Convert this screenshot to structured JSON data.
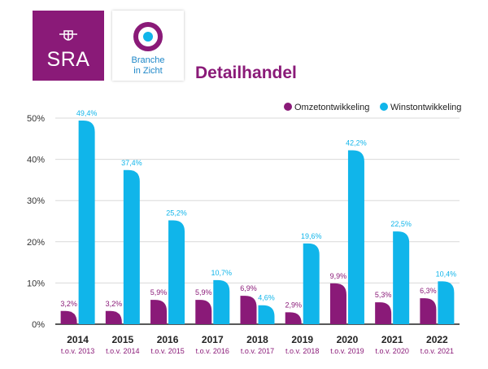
{
  "logos": {
    "sra": "SRA",
    "branche_line1": "Branche",
    "branche_line2": "in Zicht"
  },
  "colors": {
    "omzet": "#8a1a78",
    "winst": "#10b5ea",
    "axis": "#222222",
    "grid": "#d9d9d9"
  },
  "chart_data": {
    "type": "bar",
    "title": "Detailhandel",
    "categories": [
      "2014",
      "2015",
      "2016",
      "2017",
      "2018",
      "2019",
      "2020",
      "2021",
      "2022"
    ],
    "subcategories": [
      "t.o.v. 2013",
      "t.o.v. 2014",
      "t.o.v. 2015",
      "t.o.v. 2016",
      "t.o.v. 2017",
      "t.o.v. 2018",
      "t.o.v. 2019",
      "t.o.v. 2020",
      "t.o.v. 2021"
    ],
    "series": [
      {
        "name": "Omzetontwikkeling",
        "values": [
          3.2,
          3.2,
          5.9,
          5.9,
          6.9,
          2.9,
          9.9,
          5.3,
          6.3
        ],
        "labels": [
          "3,2%",
          "3,2%",
          "5,9%",
          "5,9%",
          "6,9%",
          "2,9%",
          "9,9%",
          "5,3%",
          "6,3%"
        ]
      },
      {
        "name": "Winstontwikkeling",
        "values": [
          49.4,
          37.4,
          25.2,
          10.7,
          4.6,
          19.6,
          42.2,
          22.5,
          10.4
        ],
        "labels": [
          "49,4%",
          "37,4%",
          "25,2%",
          "10,7%",
          "4,6%",
          "19,6%",
          "42,2%",
          "22,5%",
          "10,4%"
        ]
      }
    ],
    "ylim": [
      0,
      50
    ],
    "yticks": [
      0,
      10,
      20,
      30,
      40,
      50
    ],
    "ytick_labels": [
      "0%",
      "10%",
      "20%",
      "30%",
      "40%",
      "50%"
    ],
    "xlabel": "",
    "ylabel": "",
    "grid": true,
    "legend": "top-right"
  }
}
